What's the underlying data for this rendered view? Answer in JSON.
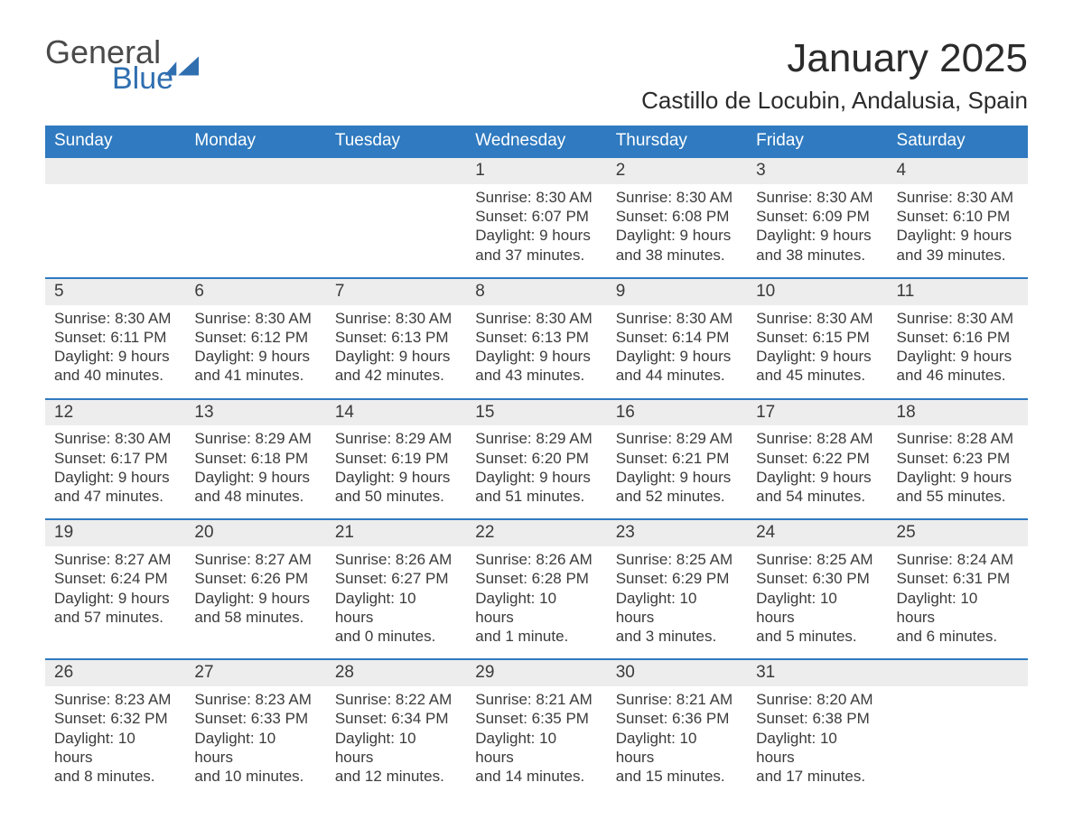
{
  "logo": {
    "word1": "General",
    "word2": "Blue"
  },
  "title": "January 2025",
  "location": "Castillo de Locubin, Andalusia, Spain",
  "colors": {
    "header_bg": "#2f7ac0",
    "header_text": "#ffffff",
    "week_border": "#2f7ac0",
    "daynum_bg": "#ededed",
    "body_text": "#3b3b3b",
    "logo_gray": "#4a4a4a",
    "logo_blue": "#2f6fb0",
    "page_bg": "#ffffff"
  },
  "typography": {
    "title_fontsize": 44,
    "location_fontsize": 26,
    "dayheader_fontsize": 19,
    "body_fontsize": 17
  },
  "day_headers": [
    "Sunday",
    "Monday",
    "Tuesday",
    "Wednesday",
    "Thursday",
    "Friday",
    "Saturday"
  ],
  "weeks": [
    [
      {
        "empty": true
      },
      {
        "empty": true
      },
      {
        "empty": true
      },
      {
        "day": "1",
        "sunrise": "Sunrise: 8:30 AM",
        "sunset": "Sunset: 6:07 PM",
        "daylight1": "Daylight: 9 hours",
        "daylight2": "and 37 minutes."
      },
      {
        "day": "2",
        "sunrise": "Sunrise: 8:30 AM",
        "sunset": "Sunset: 6:08 PM",
        "daylight1": "Daylight: 9 hours",
        "daylight2": "and 38 minutes."
      },
      {
        "day": "3",
        "sunrise": "Sunrise: 8:30 AM",
        "sunset": "Sunset: 6:09 PM",
        "daylight1": "Daylight: 9 hours",
        "daylight2": "and 38 minutes."
      },
      {
        "day": "4",
        "sunrise": "Sunrise: 8:30 AM",
        "sunset": "Sunset: 6:10 PM",
        "daylight1": "Daylight: 9 hours",
        "daylight2": "and 39 minutes."
      }
    ],
    [
      {
        "day": "5",
        "sunrise": "Sunrise: 8:30 AM",
        "sunset": "Sunset: 6:11 PM",
        "daylight1": "Daylight: 9 hours",
        "daylight2": "and 40 minutes."
      },
      {
        "day": "6",
        "sunrise": "Sunrise: 8:30 AM",
        "sunset": "Sunset: 6:12 PM",
        "daylight1": "Daylight: 9 hours",
        "daylight2": "and 41 minutes."
      },
      {
        "day": "7",
        "sunrise": "Sunrise: 8:30 AM",
        "sunset": "Sunset: 6:13 PM",
        "daylight1": "Daylight: 9 hours",
        "daylight2": "and 42 minutes."
      },
      {
        "day": "8",
        "sunrise": "Sunrise: 8:30 AM",
        "sunset": "Sunset: 6:13 PM",
        "daylight1": "Daylight: 9 hours",
        "daylight2": "and 43 minutes."
      },
      {
        "day": "9",
        "sunrise": "Sunrise: 8:30 AM",
        "sunset": "Sunset: 6:14 PM",
        "daylight1": "Daylight: 9 hours",
        "daylight2": "and 44 minutes."
      },
      {
        "day": "10",
        "sunrise": "Sunrise: 8:30 AM",
        "sunset": "Sunset: 6:15 PM",
        "daylight1": "Daylight: 9 hours",
        "daylight2": "and 45 minutes."
      },
      {
        "day": "11",
        "sunrise": "Sunrise: 8:30 AM",
        "sunset": "Sunset: 6:16 PM",
        "daylight1": "Daylight: 9 hours",
        "daylight2": "and 46 minutes."
      }
    ],
    [
      {
        "day": "12",
        "sunrise": "Sunrise: 8:30 AM",
        "sunset": "Sunset: 6:17 PM",
        "daylight1": "Daylight: 9 hours",
        "daylight2": "and 47 minutes."
      },
      {
        "day": "13",
        "sunrise": "Sunrise: 8:29 AM",
        "sunset": "Sunset: 6:18 PM",
        "daylight1": "Daylight: 9 hours",
        "daylight2": "and 48 minutes."
      },
      {
        "day": "14",
        "sunrise": "Sunrise: 8:29 AM",
        "sunset": "Sunset: 6:19 PM",
        "daylight1": "Daylight: 9 hours",
        "daylight2": "and 50 minutes."
      },
      {
        "day": "15",
        "sunrise": "Sunrise: 8:29 AM",
        "sunset": "Sunset: 6:20 PM",
        "daylight1": "Daylight: 9 hours",
        "daylight2": "and 51 minutes."
      },
      {
        "day": "16",
        "sunrise": "Sunrise: 8:29 AM",
        "sunset": "Sunset: 6:21 PM",
        "daylight1": "Daylight: 9 hours",
        "daylight2": "and 52 minutes."
      },
      {
        "day": "17",
        "sunrise": "Sunrise: 8:28 AM",
        "sunset": "Sunset: 6:22 PM",
        "daylight1": "Daylight: 9 hours",
        "daylight2": "and 54 minutes."
      },
      {
        "day": "18",
        "sunrise": "Sunrise: 8:28 AM",
        "sunset": "Sunset: 6:23 PM",
        "daylight1": "Daylight: 9 hours",
        "daylight2": "and 55 minutes."
      }
    ],
    [
      {
        "day": "19",
        "sunrise": "Sunrise: 8:27 AM",
        "sunset": "Sunset: 6:24 PM",
        "daylight1": "Daylight: 9 hours",
        "daylight2": "and 57 minutes."
      },
      {
        "day": "20",
        "sunrise": "Sunrise: 8:27 AM",
        "sunset": "Sunset: 6:26 PM",
        "daylight1": "Daylight: 9 hours",
        "daylight2": "and 58 minutes."
      },
      {
        "day": "21",
        "sunrise": "Sunrise: 8:26 AM",
        "sunset": "Sunset: 6:27 PM",
        "daylight1": "Daylight: 10 hours",
        "daylight2": "and 0 minutes."
      },
      {
        "day": "22",
        "sunrise": "Sunrise: 8:26 AM",
        "sunset": "Sunset: 6:28 PM",
        "daylight1": "Daylight: 10 hours",
        "daylight2": "and 1 minute."
      },
      {
        "day": "23",
        "sunrise": "Sunrise: 8:25 AM",
        "sunset": "Sunset: 6:29 PM",
        "daylight1": "Daylight: 10 hours",
        "daylight2": "and 3 minutes."
      },
      {
        "day": "24",
        "sunrise": "Sunrise: 8:25 AM",
        "sunset": "Sunset: 6:30 PM",
        "daylight1": "Daylight: 10 hours",
        "daylight2": "and 5 minutes."
      },
      {
        "day": "25",
        "sunrise": "Sunrise: 8:24 AM",
        "sunset": "Sunset: 6:31 PM",
        "daylight1": "Daylight: 10 hours",
        "daylight2": "and 6 minutes."
      }
    ],
    [
      {
        "day": "26",
        "sunrise": "Sunrise: 8:23 AM",
        "sunset": "Sunset: 6:32 PM",
        "daylight1": "Daylight: 10 hours",
        "daylight2": "and 8 minutes."
      },
      {
        "day": "27",
        "sunrise": "Sunrise: 8:23 AM",
        "sunset": "Sunset: 6:33 PM",
        "daylight1": "Daylight: 10 hours",
        "daylight2": "and 10 minutes."
      },
      {
        "day": "28",
        "sunrise": "Sunrise: 8:22 AM",
        "sunset": "Sunset: 6:34 PM",
        "daylight1": "Daylight: 10 hours",
        "daylight2": "and 12 minutes."
      },
      {
        "day": "29",
        "sunrise": "Sunrise: 8:21 AM",
        "sunset": "Sunset: 6:35 PM",
        "daylight1": "Daylight: 10 hours",
        "daylight2": "and 14 minutes."
      },
      {
        "day": "30",
        "sunrise": "Sunrise: 8:21 AM",
        "sunset": "Sunset: 6:36 PM",
        "daylight1": "Daylight: 10 hours",
        "daylight2": "and 15 minutes."
      },
      {
        "day": "31",
        "sunrise": "Sunrise: 8:20 AM",
        "sunset": "Sunset: 6:38 PM",
        "daylight1": "Daylight: 10 hours",
        "daylight2": "and 17 minutes."
      },
      {
        "empty": true
      }
    ]
  ]
}
